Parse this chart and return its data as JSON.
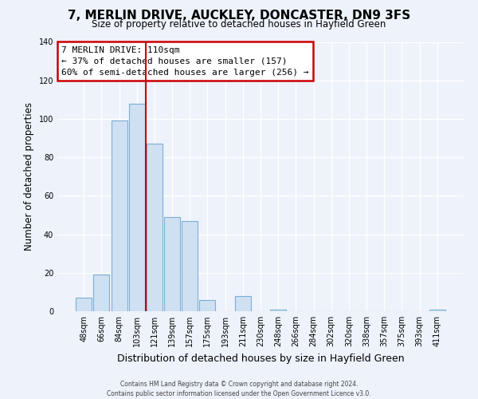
{
  "title": "7, MERLIN DRIVE, AUCKLEY, DONCASTER, DN9 3FS",
  "subtitle": "Size of property relative to detached houses in Hayfield Green",
  "xlabel": "Distribution of detached houses by size in Hayfield Green",
  "ylabel": "Number of detached properties",
  "bin_labels": [
    "48sqm",
    "66sqm",
    "84sqm",
    "103sqm",
    "121sqm",
    "139sqm",
    "157sqm",
    "175sqm",
    "193sqm",
    "211sqm",
    "230sqm",
    "248sqm",
    "266sqm",
    "284sqm",
    "302sqm",
    "320sqm",
    "338sqm",
    "357sqm",
    "375sqm",
    "393sqm",
    "411sqm"
  ],
  "bar_heights": [
    7,
    19,
    99,
    108,
    87,
    49,
    47,
    6,
    0,
    8,
    0,
    1,
    0,
    0,
    0,
    0,
    0,
    0,
    0,
    0,
    1
  ],
  "bar_color": "#cfe0f3",
  "bar_edge_color": "#7bafd4",
  "vline_color": "#cc0000",
  "annotation_title": "7 MERLIN DRIVE: 110sqm",
  "annotation_line1": "← 37% of detached houses are smaller (157)",
  "annotation_line2": "60% of semi-detached houses are larger (256) →",
  "annotation_box_color": "#cc0000",
  "ylim": [
    0,
    140
  ],
  "yticks": [
    0,
    20,
    40,
    60,
    80,
    100,
    120,
    140
  ],
  "footer1": "Contains HM Land Registry data © Crown copyright and database right 2024.",
  "footer2": "Contains public sector information licensed under the Open Government Licence v3.0.",
  "bg_color": "#edf2fb",
  "grid_color": "#ffffff"
}
